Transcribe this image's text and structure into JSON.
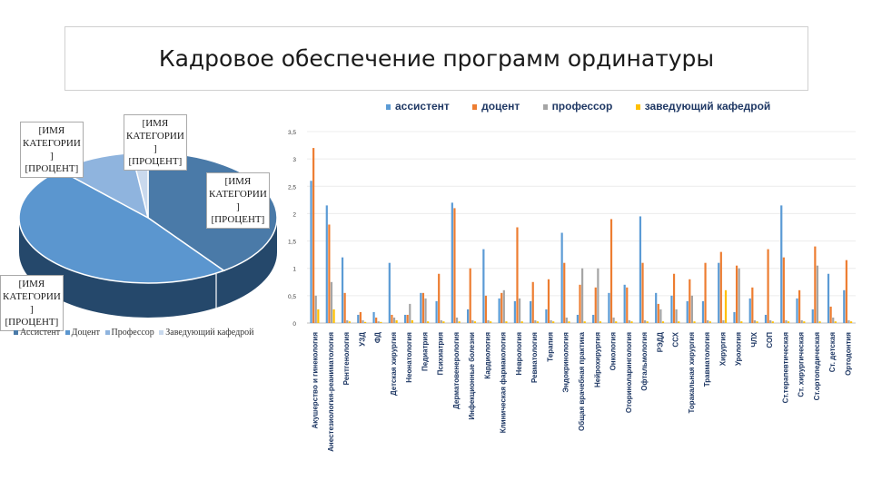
{
  "slide": {
    "title": "Кадровое обеспечение программ ординатуры"
  },
  "colors": {
    "assistant": "#5b9bd5",
    "docent": "#ed7d31",
    "professor": "#a5a5a5",
    "head": "#ffc000",
    "pie_assistant": "#4a7aa8",
    "pie_docent": "#5b96cf",
    "pie_professor": "#8fb4de",
    "pie_head": "#c9d9ed"
  },
  "chart_data": [
    {
      "type": "pie",
      "title": "",
      "labels": [
        "Ассистент",
        "Доцент",
        "Профессор",
        "Заведующий кафедрой"
      ],
      "values": [
        0.4,
        0.48,
        0.1,
        0.02
      ],
      "data_label": "[ИМЯ КАТЕГОРИИ] [ПРОЦЕНТ]",
      "data_label_lines": [
        "[ИМЯ",
        "КАТЕГОРИИ",
        "]",
        "[ПРОЦЕНТ]"
      ],
      "legend": "bottom"
    },
    {
      "type": "bar",
      "title": "",
      "categories": [
        "Акушерство и гинекология",
        "Анестезиология-реаниматология",
        "Рентгенология",
        "УЗД",
        "ФД",
        "Детская хирургия",
        "Неонатология",
        "Педиатрия",
        "Психиатрия",
        "Дерматовенерология",
        "Инфекционные болезни",
        "Кардиология",
        "Клиническая фармакология",
        "Неврология",
        "Ревматология",
        "Терапия",
        "Эндокринология",
        "Общая врачебная практика",
        "Нейрохирургия",
        "Онкология",
        "Оториноларингология",
        "Офтальмология",
        "РЭДД",
        "ССХ",
        "Торакальная хирургия",
        "Травматология",
        "Хирургия",
        "Урология",
        "ЧЛХ",
        "СОП",
        "Ст.терапевтическая",
        "Ст. хирургическая",
        "Ст.ортопедическая",
        "Ст. детская",
        "Ортодонтия"
      ],
      "series": [
        {
          "name": "ассистент",
          "values": [
            2.6,
            2.15,
            1.2,
            0.15,
            0.2,
            1.1,
            0.15,
            0.55,
            0.4,
            2.2,
            0.25,
            1.35,
            0.45,
            0.4,
            0.4,
            0.25,
            1.65,
            0.15,
            0.15,
            0.55,
            0.7,
            1.95,
            0.55,
            0.5,
            0.4,
            0.4,
            1.1,
            0.2,
            0.45,
            0.15,
            2.15,
            0.45,
            0.25,
            0.9,
            0.6
          ]
        },
        {
          "name": "доцент",
          "values": [
            3.2,
            1.8,
            0.55,
            0.2,
            0.1,
            0.15,
            0.15,
            0.55,
            0.9,
            2.1,
            1.0,
            0.5,
            0.55,
            1.75,
            0.75,
            0.8,
            1.1,
            0.7,
            0.65,
            1.9,
            0.65,
            1.1,
            0.35,
            0.9,
            0.8,
            1.1,
            1.3,
            1.05,
            0.65,
            1.35,
            1.2,
            0.6,
            1.4,
            0.3,
            1.15
          ]
        },
        {
          "name": "профессор",
          "values": [
            0.5,
            0.75,
            0.05,
            0.05,
            0.03,
            0.1,
            0.35,
            0.45,
            0.05,
            0.1,
            0.05,
            0.05,
            0.6,
            0.45,
            0.05,
            0.05,
            0.1,
            1.0,
            1.0,
            0.1,
            0.05,
            0.05,
            0.25,
            0.25,
            0.5,
            0.05,
            0.05,
            1.0,
            0.05,
            0.05,
            0.05,
            0.05,
            1.05,
            0.1,
            0.05
          ]
        },
        {
          "name": "заведующий кафедрой",
          "values": [
            0.25,
            0.25,
            0.03,
            0.02,
            0.02,
            0.05,
            0.05,
            0.03,
            0.03,
            0.03,
            0.03,
            0.03,
            0.03,
            0.03,
            0.03,
            0.03,
            0.03,
            0.03,
            0.03,
            0.03,
            0.03,
            0.03,
            0.03,
            0.03,
            0.03,
            0.03,
            0.6,
            0.03,
            0.03,
            0.03,
            0.03,
            0.03,
            0.03,
            0.03,
            0.03
          ]
        }
      ],
      "yticks": [
        "0",
        "0,5",
        "1",
        "1,5",
        "2",
        "2,5",
        "3",
        "3,5"
      ],
      "ylim": [
        0,
        3.5
      ],
      "legend": "top"
    }
  ]
}
